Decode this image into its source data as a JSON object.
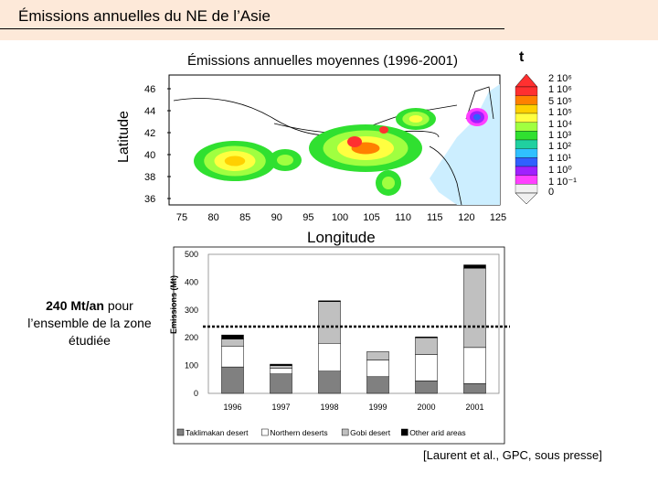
{
  "slide": {
    "title": "Émissions annuelles du NE de l’Asie"
  },
  "map": {
    "title": "Émissions annuelles moyennes (1996-2001)",
    "unit": "t",
    "ylabel": "Latitude",
    "xlabel": "Longitude",
    "lat_ticks": [
      "46",
      "44",
      "42",
      "40",
      "38",
      "36"
    ],
    "lon_ticks": [
      "75",
      "80",
      "85",
      "90",
      "95",
      "100",
      "105",
      "110",
      "115",
      "120",
      "125"
    ],
    "scale_labels": [
      "2 10⁶",
      "1 10⁶",
      "5 10⁵",
      "1 10⁵",
      "1 10⁴",
      "1 10³",
      "1 10²",
      "1 10¹",
      "1 10⁰",
      "1 10⁻¹",
      "0"
    ],
    "scale_colors": [
      "#ff3030",
      "#ff8000",
      "#ffd000",
      "#ffff40",
      "#a0ff40",
      "#30e030",
      "#20d0a0",
      "#30c0ff",
      "#3060ff",
      "#a020ff",
      "#ff40ff",
      "#f0f0f0"
    ]
  },
  "annotation": {
    "bold": "240 Mt/an",
    "rest": " pour l’ensemble de la zone étudiée"
  },
  "chart_data": {
    "type": "bar",
    "ylabel": "Emissions (Mt)",
    "ylim": [
      0,
      500
    ],
    "yticks": [
      0,
      100,
      200,
      300,
      400,
      500
    ],
    "categories": [
      "1996",
      "1997",
      "1998",
      "1999",
      "2000",
      "2001"
    ],
    "reference_line": 240,
    "series": [
      {
        "name": "Taklimakan desert",
        "color": "#808080",
        "values": [
          95,
          70,
          80,
          60,
          45,
          35
        ]
      },
      {
        "name": "Northern deserts",
        "color": "#ffffff",
        "values": [
          75,
          20,
          100,
          60,
          95,
          130
        ]
      },
      {
        "name": "Gobi desert",
        "color": "#c0c0c0",
        "values": [
          25,
          10,
          150,
          30,
          60,
          285
        ]
      },
      {
        "name": "Other arid areas",
        "color": "#000000",
        "values": [
          15,
          5,
          3,
          0,
          3,
          12
        ]
      }
    ],
    "legend_position": "bottom"
  },
  "citation": "[Laurent et al., GPC, sous presse]"
}
